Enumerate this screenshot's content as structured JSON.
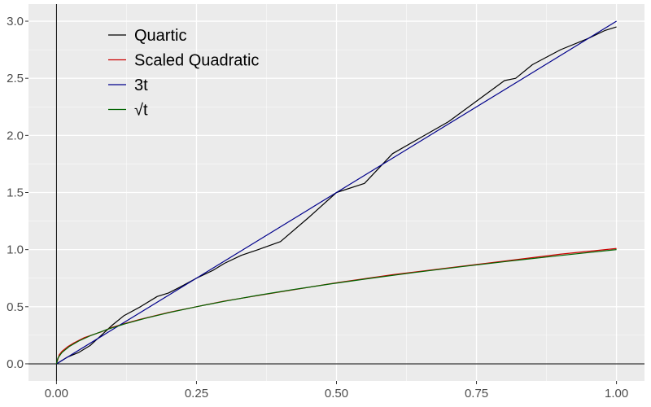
{
  "chart_data": {
    "type": "line",
    "title": "",
    "xlabel": "",
    "ylabel": "",
    "xlim": [
      -0.05,
      1.05
    ],
    "ylim": [
      -0.15,
      3.15
    ],
    "x_ticks": [
      0,
      0.25,
      0.5,
      0.75,
      1.0
    ],
    "x_tick_labels": [
      "0.00",
      "0.25",
      "0.50",
      "0.75",
      "1.00"
    ],
    "y_ticks": [
      0,
      0.5,
      1.0,
      1.5,
      2.0,
      2.5,
      3.0
    ],
    "y_tick_labels": [
      "0.0",
      "0.5",
      "1.0",
      "1.5",
      "2.0",
      "2.5",
      "3.0"
    ],
    "grid": true,
    "legend_position": "top-left",
    "background_color": "#ebebeb",
    "grid_color": "#ffffff",
    "series": [
      {
        "name": "Quartic",
        "color": "#000000",
        "x": [
          0,
          0.01,
          0.02,
          0.04,
          0.06,
          0.08,
          0.1,
          0.12,
          0.15,
          0.18,
          0.2,
          0.22,
          0.25,
          0.28,
          0.3,
          0.33,
          0.36,
          0.4,
          0.45,
          0.5,
          0.55,
          0.6,
          0.65,
          0.7,
          0.75,
          0.8,
          0.82,
          0.85,
          0.9,
          0.95,
          0.98,
          1.0
        ],
        "y": [
          0.0,
          0.03,
          0.06,
          0.1,
          0.16,
          0.25,
          0.34,
          0.42,
          0.5,
          0.59,
          0.62,
          0.67,
          0.75,
          0.82,
          0.88,
          0.95,
          1.0,
          1.07,
          1.28,
          1.5,
          1.58,
          1.84,
          1.98,
          2.12,
          2.3,
          2.48,
          2.5,
          2.62,
          2.75,
          2.85,
          2.92,
          2.95
        ]
      },
      {
        "name": "Scaled Quadratic",
        "color": "#cc0000",
        "x": [
          0,
          0.005,
          0.01,
          0.02,
          0.03,
          0.05,
          0.08,
          0.1,
          0.12,
          0.15,
          0.2,
          0.25,
          0.3,
          0.4,
          0.5,
          0.6,
          0.7,
          0.8,
          0.9,
          1.0
        ],
        "y": [
          0.0,
          0.08,
          0.11,
          0.15,
          0.18,
          0.23,
          0.28,
          0.32,
          0.35,
          0.39,
          0.45,
          0.5,
          0.55,
          0.63,
          0.71,
          0.78,
          0.84,
          0.9,
          0.96,
          1.01
        ]
      },
      {
        "name": "3t",
        "color": "#00008b",
        "x": [
          0,
          1.0
        ],
        "y": [
          0,
          3.0
        ]
      },
      {
        "name": "√t",
        "color": "#006400",
        "x": [
          0,
          0.0025,
          0.01,
          0.0225,
          0.04,
          0.0625,
          0.09,
          0.1225,
          0.16,
          0.2025,
          0.25,
          0.3025,
          0.36,
          0.4225,
          0.49,
          0.5625,
          0.64,
          0.7225,
          0.81,
          0.9025,
          1.0
        ],
        "y": [
          0,
          0.05,
          0.1,
          0.15,
          0.2,
          0.25,
          0.3,
          0.35,
          0.4,
          0.45,
          0.5,
          0.55,
          0.6,
          0.65,
          0.7,
          0.75,
          0.8,
          0.85,
          0.9,
          0.95,
          1.0
        ]
      }
    ],
    "legend": [
      {
        "label": "Quartic",
        "color": "#000000"
      },
      {
        "label": "Scaled Quadratic",
        "color": "#cc0000"
      },
      {
        "label": "3t",
        "color": "#00008b"
      },
      {
        "label": "√t",
        "color": "#006400"
      }
    ]
  }
}
